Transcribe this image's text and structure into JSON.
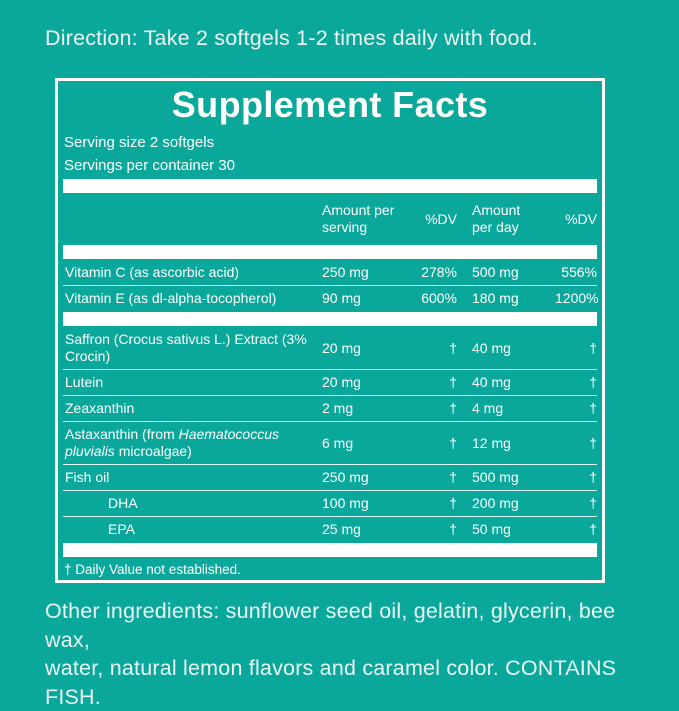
{
  "colors": {
    "background": "#0aa89a",
    "panel_border": "#ffffff",
    "text": "#ffffff",
    "section_bar": "#ffffff"
  },
  "direction_text": "Direction: Take 2 softgels 1-2 times daily with food.",
  "supplement_facts": {
    "title": "Supplement Facts",
    "serving_size": "Serving size 2 softgels",
    "servings_per_container": "Servings per container 30",
    "column_headers": {
      "amount_per_serving_lines": [
        "Amount per",
        "serving"
      ],
      "percent_dv_serving": "%DV",
      "amount_per_day_lines": [
        "Amount",
        "per day"
      ],
      "percent_dv_day": "%DV"
    },
    "items": [
      {
        "type": "row",
        "indent": false,
        "name_parts": [
          {
            "text": "Vitamin C (as ascorbic acid)",
            "italic": false
          }
        ],
        "amount_per_serving": "250 mg",
        "percent_dv_serving": "278%",
        "amount_per_day": "500 mg",
        "percent_dv_day": "556%"
      },
      {
        "type": "row",
        "indent": false,
        "name_parts": [
          {
            "text": "Vitamin E (as dl-alpha-tocopherol)",
            "italic": false
          }
        ],
        "amount_per_serving": "90 mg",
        "percent_dv_serving": "600%",
        "amount_per_day": "180 mg",
        "percent_dv_day": "1200%"
      },
      {
        "type": "bar"
      },
      {
        "type": "row",
        "indent": false,
        "name_parts": [
          {
            "text": "Saffron (Crocus sativus L.) Extract (3% Crocin)",
            "italic": false
          }
        ],
        "amount_per_serving": "20 mg",
        "percent_dv_serving": "†",
        "amount_per_day": "40 mg",
        "percent_dv_day": "†"
      },
      {
        "type": "row",
        "indent": false,
        "name_parts": [
          {
            "text": "Lutein",
            "italic": false
          }
        ],
        "amount_per_serving": "20 mg",
        "percent_dv_serving": "†",
        "amount_per_day": "40 mg",
        "percent_dv_day": "†"
      },
      {
        "type": "row",
        "indent": false,
        "name_parts": [
          {
            "text": "Zeaxanthin",
            "italic": false
          }
        ],
        "amount_per_serving": "2 mg",
        "percent_dv_serving": "†",
        "amount_per_day": "4 mg",
        "percent_dv_day": "†"
      },
      {
        "type": "row",
        "indent": false,
        "name_parts": [
          {
            "text": "Astaxanthin (from ",
            "italic": false
          },
          {
            "text": "Haematococcus pluvialis",
            "italic": true
          },
          {
            "text": " microalgae)",
            "italic": false
          }
        ],
        "amount_per_serving": "6 mg",
        "percent_dv_serving": "†",
        "amount_per_day": "12 mg",
        "percent_dv_day": "†"
      },
      {
        "type": "row",
        "indent": false,
        "name_parts": [
          {
            "text": "Fish oil",
            "italic": false
          }
        ],
        "amount_per_serving": "250 mg",
        "percent_dv_serving": "†",
        "amount_per_day": "500 mg",
        "percent_dv_day": "†"
      },
      {
        "type": "row",
        "indent": true,
        "name_parts": [
          {
            "text": "DHA",
            "italic": false
          }
        ],
        "amount_per_serving": "100 mg",
        "percent_dv_serving": "†",
        "amount_per_day": "200 mg",
        "percent_dv_day": "†"
      },
      {
        "type": "row",
        "indent": true,
        "name_parts": [
          {
            "text": "EPA",
            "italic": false
          }
        ],
        "amount_per_serving": "25 mg",
        "percent_dv_serving": "†",
        "amount_per_day": "50 mg",
        "percent_dv_day": "†"
      },
      {
        "type": "bar"
      }
    ],
    "footnote": "† Daily Value not established."
  },
  "other_ingredients_lines": [
    "Other ingredients: sunflower seed oil, gelatin, glycerin, bee wax,",
    "water, natural lemon flavors and caramel color. CONTAINS FISH."
  ]
}
